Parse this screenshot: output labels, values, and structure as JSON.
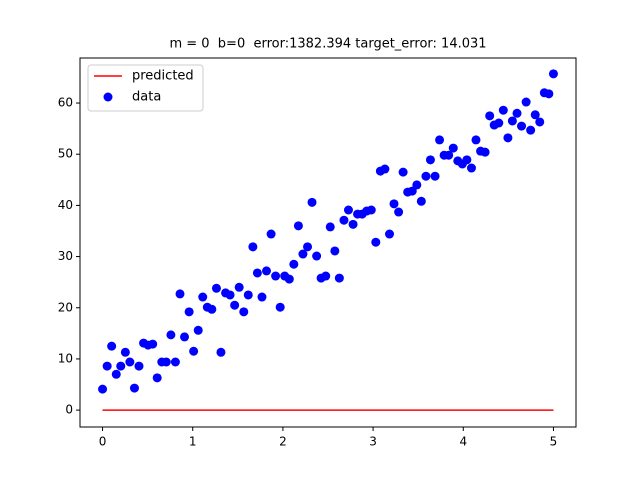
{
  "chart_data": {
    "type": "scatter",
    "title": "m = 0  b=0  error:1382.394 target_error: 14.031",
    "xlim": [
      -0.25,
      5.25
    ],
    "ylim": [
      -3.3,
      68.8
    ],
    "xticks": [
      0,
      1,
      2,
      3,
      4,
      5
    ],
    "yticks": [
      0,
      10,
      20,
      30,
      40,
      50,
      60
    ],
    "legend": "upper left",
    "line": {
      "name": "predicted",
      "color": "#ff0000",
      "x": [
        0,
        5
      ],
      "values": [
        0,
        0
      ]
    },
    "series": [
      {
        "name": "data",
        "color": "#0000ff",
        "x": [
          0,
          0.051,
          0.101,
          0.152,
          0.202,
          0.253,
          0.303,
          0.354,
          0.404,
          0.455,
          0.505,
          0.556,
          0.606,
          0.657,
          0.707,
          0.758,
          0.808,
          0.859,
          0.909,
          0.96,
          1.01,
          1.061,
          1.111,
          1.162,
          1.212,
          1.263,
          1.313,
          1.364,
          1.414,
          1.465,
          1.515,
          1.566,
          1.616,
          1.667,
          1.717,
          1.768,
          1.818,
          1.869,
          1.919,
          1.97,
          2.02,
          2.071,
          2.121,
          2.172,
          2.222,
          2.273,
          2.323,
          2.374,
          2.424,
          2.475,
          2.525,
          2.576,
          2.626,
          2.677,
          2.727,
          2.778,
          2.828,
          2.879,
          2.929,
          2.98,
          3.03,
          3.081,
          3.131,
          3.182,
          3.232,
          3.283,
          3.333,
          3.384,
          3.434,
          3.485,
          3.535,
          3.586,
          3.636,
          3.687,
          3.737,
          3.788,
          3.838,
          3.889,
          3.939,
          3.99,
          4.04,
          4.091,
          4.141,
          4.192,
          4.242,
          4.293,
          4.343,
          4.394,
          4.444,
          4.495,
          4.545,
          4.596,
          4.646,
          4.697,
          4.747,
          4.798,
          4.848,
          4.899,
          4.949,
          5
        ],
        "values": [
          4.1,
          8.6,
          12.5,
          7.0,
          8.6,
          11.3,
          9.4,
          4.3,
          8.6,
          13.1,
          12.7,
          12.9,
          6.3,
          9.4,
          9.4,
          14.7,
          9.4,
          22.7,
          14.3,
          19.2,
          11.5,
          15.6,
          22.1,
          20.1,
          19.7,
          23.8,
          11.3,
          22.9,
          22.5,
          20.5,
          24.0,
          19.2,
          22.5,
          31.9,
          26.8,
          22.1,
          27.2,
          34.4,
          26.2,
          20.1,
          26.2,
          25.6,
          28.5,
          36.0,
          30.5,
          31.9,
          40.6,
          30.1,
          25.8,
          26.2,
          35.8,
          31.1,
          25.8,
          37.1,
          39.1,
          36.3,
          38.3,
          38.3,
          38.9,
          39.1,
          32.8,
          46.7,
          47.1,
          34.4,
          40.3,
          38.7,
          46.5,
          42.6,
          42.8,
          44.0,
          40.8,
          45.7,
          48.9,
          45.7,
          52.8,
          49.8,
          49.8,
          51.2,
          48.7,
          48.1,
          48.9,
          47.3,
          52.8,
          50.6,
          50.4,
          57.5,
          55.7,
          56.1,
          58.6,
          53.2,
          56.5,
          58.0,
          55.5,
          60.2,
          54.7,
          57.7,
          56.3,
          62.0,
          61.8,
          65.7
        ]
      }
    ]
  }
}
